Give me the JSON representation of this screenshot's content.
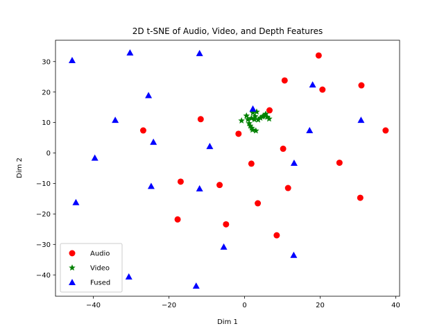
{
  "chart_data": {
    "type": "scatter",
    "title": "2D t-SNE of Audio, Video, and Depth Features",
    "xlabel": "Dim 1",
    "ylabel": "Dim 2",
    "xlim": [
      -50,
      41
    ],
    "ylim": [
      -47,
      37
    ],
    "xticks": [
      -40,
      -20,
      0,
      20,
      40
    ],
    "yticks": [
      -40,
      -30,
      -20,
      -10,
      0,
      10,
      20,
      30
    ],
    "grid": false,
    "legend_position": "lower-left",
    "series": [
      {
        "name": "Audio",
        "color": "#ff0000",
        "marker": "circle",
        "points": [
          [
            19.6,
            32.0
          ],
          [
            10.6,
            23.8
          ],
          [
            20.6,
            20.8
          ],
          [
            30.9,
            22.2
          ],
          [
            -26.8,
            7.4
          ],
          [
            -11.6,
            11.1
          ],
          [
            -1.6,
            6.3
          ],
          [
            6.6,
            14.0
          ],
          [
            37.3,
            7.4
          ],
          [
            10.2,
            1.4
          ],
          [
            1.8,
            -3.5
          ],
          [
            25.1,
            -3.2
          ],
          [
            -16.9,
            -9.4
          ],
          [
            -6.6,
            -10.5
          ],
          [
            11.5,
            -11.5
          ],
          [
            3.5,
            -16.5
          ],
          [
            -17.7,
            -21.8
          ],
          [
            -4.9,
            -23.4
          ],
          [
            30.6,
            -14.7
          ],
          [
            8.5,
            -27.0
          ]
        ]
      },
      {
        "name": "Video",
        "color": "#008000",
        "marker": "star",
        "points": [
          [
            -0.8,
            10.6
          ],
          [
            0.5,
            12.2
          ],
          [
            1.2,
            9.7
          ],
          [
            1.8,
            11.4
          ],
          [
            2.2,
            13.2
          ],
          [
            2.8,
            12.0
          ],
          [
            3.2,
            13.5
          ],
          [
            0.9,
            11.0
          ],
          [
            1.5,
            8.9
          ],
          [
            2.1,
            7.6
          ],
          [
            3.0,
            7.3
          ],
          [
            3.6,
            10.9
          ],
          [
            4.2,
            11.5
          ],
          [
            5.0,
            12.1
          ],
          [
            5.6,
            12.8
          ],
          [
            6.0,
            11.8
          ],
          [
            6.5,
            11.2
          ],
          [
            1.9,
            8.2
          ],
          [
            2.6,
            11.0
          ],
          [
            4.7,
            11.9
          ]
        ]
      },
      {
        "name": "Fused",
        "color": "#0000ff",
        "marker": "triangle",
        "points": [
          [
            -45.6,
            30.4
          ],
          [
            -30.3,
            32.9
          ],
          [
            -11.9,
            32.7
          ],
          [
            -25.4,
            18.9
          ],
          [
            -34.2,
            10.8
          ],
          [
            -24.1,
            3.6
          ],
          [
            -39.6,
            -1.6
          ],
          [
            -9.2,
            2.2
          ],
          [
            -24.7,
            -10.9
          ],
          [
            -11.9,
            -11.7
          ],
          [
            -44.6,
            -16.2
          ],
          [
            -5.5,
            -30.8
          ],
          [
            -30.6,
            -40.6
          ],
          [
            -12.8,
            -43.6
          ],
          [
            2.2,
            14.5
          ],
          [
            18.0,
            22.4
          ],
          [
            17.2,
            7.4
          ],
          [
            30.8,
            10.8
          ],
          [
            13.1,
            -3.3
          ],
          [
            13.0,
            -33.5
          ]
        ]
      }
    ]
  }
}
